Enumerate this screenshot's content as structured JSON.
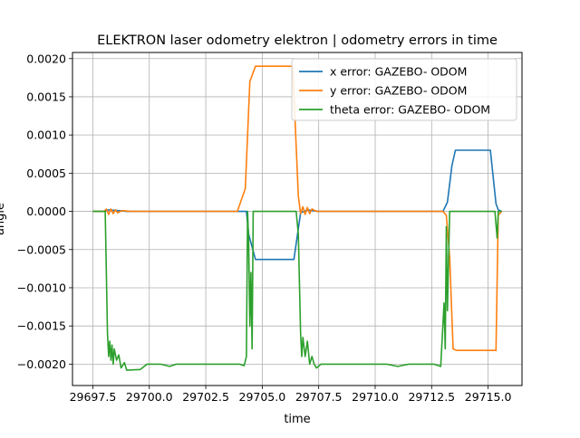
{
  "chart_data": {
    "type": "line",
    "title": "ELEKTRON laser odometry elektron | odometry errors in time",
    "xlabel": "time",
    "ylabel": "angle",
    "xlim": [
      29696.6,
      29716.5
    ],
    "ylim": [
      -0.00228,
      0.00208
    ],
    "grid": true,
    "legend_position": "top-right",
    "x_ticks": [
      29697.5,
      29700.0,
      29702.5,
      29705.0,
      29707.5,
      29710.0,
      29712.5,
      29715.0
    ],
    "x_tick_labels": [
      "29697.5",
      "29700.0",
      "29702.5",
      "29705.0",
      "29707.5",
      "29710.0",
      "29712.5",
      "29715.0"
    ],
    "y_ticks": [
      0.002,
      0.0015,
      0.001,
      0.0005,
      0.0,
      -0.0005,
      -0.001,
      -0.0015,
      -0.002
    ],
    "y_tick_labels": [
      "0.0020",
      "0.0015",
      "0.0010",
      "0.0005",
      "0.0000",
      "−0.0005",
      "−0.0010",
      "−0.0015",
      "−0.0020"
    ],
    "series": [
      {
        "name": "x error: GAZEBO- ODOM",
        "color": "#1f77b4",
        "points": [
          [
            29697.5,
            0.0
          ],
          [
            29698.0,
            0.0
          ],
          [
            29698.2,
            2e-05
          ],
          [
            29698.6,
            1e-05
          ],
          [
            29699.0,
            0.0
          ],
          [
            29700.0,
            0.0
          ],
          [
            29702.0,
            0.0
          ],
          [
            29703.9,
            0.0
          ],
          [
            29704.3,
            0.0
          ],
          [
            29704.4,
            -0.0003
          ],
          [
            29704.7,
            -0.00063
          ],
          [
            29706.4,
            -0.00063
          ],
          [
            29706.7,
            -2e-05
          ],
          [
            29707.0,
            2e-05
          ],
          [
            29707.5,
            0.0
          ],
          [
            29710.0,
            0.0
          ],
          [
            29713.0,
            0.0
          ],
          [
            29713.2,
            0.00012
          ],
          [
            29713.4,
            0.0006
          ],
          [
            29713.55,
            0.0008
          ],
          [
            29715.1,
            0.0008
          ],
          [
            29715.35,
            0.0001
          ],
          [
            29715.45,
            2e-05
          ],
          [
            29715.6,
            0.0
          ]
        ]
      },
      {
        "name": "y error: GAZEBO- ODOM",
        "color": "#ff7f0e",
        "points": [
          [
            29697.5,
            0.0
          ],
          [
            29698.0,
            0.0
          ],
          [
            29698.1,
            3e-05
          ],
          [
            29698.2,
            -4e-05
          ],
          [
            29698.3,
            3e-05
          ],
          [
            29698.4,
            -3e-05
          ],
          [
            29698.5,
            2e-05
          ],
          [
            29698.6,
            -2e-05
          ],
          [
            29698.8,
            1e-05
          ],
          [
            29699.2,
            0.0
          ],
          [
            29700.0,
            0.0
          ],
          [
            29703.0,
            0.0
          ],
          [
            29703.9,
            0.0
          ],
          [
            29704.25,
            0.0003
          ],
          [
            29704.45,
            0.0017
          ],
          [
            29704.7,
            0.0019
          ],
          [
            29706.35,
            0.0019
          ],
          [
            29706.6,
            0.0002
          ],
          [
            29706.7,
            -3e-05
          ],
          [
            29706.8,
            6e-05
          ],
          [
            29706.9,
            -4e-05
          ],
          [
            29707.0,
            5e-05
          ],
          [
            29707.1,
            -3e-05
          ],
          [
            29707.2,
            3e-05
          ],
          [
            29707.4,
            0.0
          ],
          [
            29710.0,
            0.0
          ],
          [
            29713.0,
            0.0
          ],
          [
            29713.15,
            -5e-05
          ],
          [
            29713.3,
            -0.0006
          ],
          [
            29713.45,
            -0.0018
          ],
          [
            29713.6,
            -0.00182
          ],
          [
            29715.35,
            -0.00182
          ],
          [
            29715.45,
            -5e-05
          ],
          [
            29715.6,
            0.0
          ]
        ]
      },
      {
        "name": "theta error: GAZEBO- ODOM",
        "color": "#2ca02c",
        "points": [
          [
            29697.5,
            0.0
          ],
          [
            29698.05,
            0.0
          ],
          [
            29698.15,
            -0.0016
          ],
          [
            29698.2,
            -0.0019
          ],
          [
            29698.25,
            -0.0017
          ],
          [
            29698.3,
            -0.00195
          ],
          [
            29698.35,
            -0.00175
          ],
          [
            29698.4,
            -0.002
          ],
          [
            29698.45,
            -0.0018
          ],
          [
            29698.55,
            -0.00195
          ],
          [
            29698.65,
            -0.00188
          ],
          [
            29698.75,
            -0.00205
          ],
          [
            29698.9,
            -0.00198
          ],
          [
            29699.0,
            -0.00208
          ],
          [
            29699.6,
            -0.00207
          ],
          [
            29699.9,
            -0.002
          ],
          [
            29700.5,
            -0.002
          ],
          [
            29700.9,
            -0.00203
          ],
          [
            29701.2,
            -0.002
          ],
          [
            29704.0,
            -0.002
          ],
          [
            29704.2,
            -0.00202
          ],
          [
            29704.3,
            -0.0019
          ],
          [
            29704.35,
            0.0
          ],
          [
            29704.4,
            -0.0004
          ],
          [
            29704.45,
            -0.0015
          ],
          [
            29704.5,
            -0.0008
          ],
          [
            29704.55,
            -0.0018
          ],
          [
            29704.6,
            0.0
          ],
          [
            29706.5,
            0.0
          ],
          [
            29706.6,
            -0.0003
          ],
          [
            29706.7,
            -0.0016
          ],
          [
            29706.75,
            -0.0019
          ],
          [
            29706.8,
            -0.00165
          ],
          [
            29706.9,
            -0.0019
          ],
          [
            29707.0,
            -0.0017
          ],
          [
            29707.1,
            -0.002
          ],
          [
            29707.2,
            -0.0019
          ],
          [
            29707.3,
            -0.002
          ],
          [
            29707.4,
            -0.00205
          ],
          [
            29707.6,
            -0.002
          ],
          [
            29708.0,
            -0.002
          ],
          [
            29710.5,
            -0.002
          ],
          [
            29711.0,
            -0.00203
          ],
          [
            29711.5,
            -0.002
          ],
          [
            29712.6,
            -0.002
          ],
          [
            29712.9,
            -0.00203
          ],
          [
            29713.05,
            -0.0012
          ],
          [
            29713.1,
            -0.0018
          ],
          [
            29713.15,
            -0.0002
          ],
          [
            29713.2,
            -0.0013
          ],
          [
            29713.3,
            0.0
          ],
          [
            29715.3,
            0.0
          ],
          [
            29715.4,
            -0.00035
          ],
          [
            29715.45,
            0.0
          ],
          [
            29715.6,
            0.0
          ]
        ]
      }
    ]
  }
}
